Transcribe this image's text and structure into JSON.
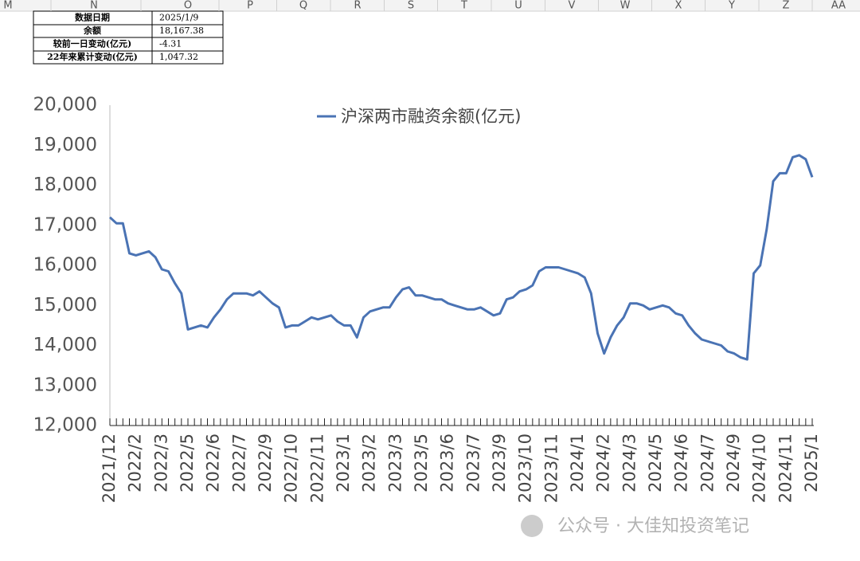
{
  "columns": [
    "M",
    "N",
    "O",
    "P",
    "Q",
    "R",
    "S",
    "T",
    "U",
    "V",
    "W",
    "X",
    "Y",
    "Z",
    "AA"
  ],
  "table": {
    "rows": [
      [
        "数据日期",
        "2025/1/9"
      ],
      [
        "余额",
        "18,167.38"
      ],
      [
        "较前一日变动(亿元)",
        "-4.31"
      ],
      [
        "22年来累计变动(亿元)",
        "1,047.32"
      ]
    ]
  },
  "watermark": "公众号 · 大佳知投资笔记",
  "chart_data": {
    "type": "line",
    "categories": [
      "2021/12",
      null,
      null,
      null,
      "2022/2",
      null,
      null,
      null,
      "2022/3",
      null,
      null,
      null,
      "2022/5",
      null,
      null,
      null,
      "2022/6",
      null,
      null,
      null,
      "2022/7",
      null,
      null,
      null,
      "2022/9",
      null,
      null,
      null,
      "2022/10",
      null,
      null,
      null,
      "2022/11",
      null,
      null,
      null,
      "2023/1",
      null,
      null,
      null,
      "2023/2",
      null,
      null,
      null,
      "2023/3",
      null,
      null,
      null,
      "2023/5",
      null,
      null,
      null,
      "2023/6",
      null,
      null,
      null,
      "2023/7",
      null,
      null,
      null,
      "2023/9",
      null,
      null,
      null,
      "2023/10",
      null,
      null,
      null,
      "2023/11",
      null,
      null,
      null,
      "2024/1",
      null,
      null,
      null,
      "2024/2",
      null,
      null,
      null,
      "2024/3",
      null,
      null,
      null,
      "2024/5",
      null,
      null,
      null,
      "2024/6",
      null,
      null,
      null,
      "2024/7",
      null,
      null,
      null,
      "2024/9",
      null,
      null,
      null,
      "2024/10",
      null,
      null,
      null,
      "2024/11",
      null,
      null,
      null,
      "2025/1"
    ],
    "series": [
      {
        "name": "沪深两市融资余额(亿元)",
        "color": "#4a73b4",
        "values": [
          17200,
          17050,
          17050,
          16300,
          16250,
          16300,
          16350,
          16200,
          15900,
          15850,
          15550,
          15300,
          14400,
          14450,
          14500,
          14450,
          14700,
          14900,
          15150,
          15300,
          15300,
          15300,
          15250,
          15350,
          15200,
          15050,
          14950,
          14450,
          14500,
          14500,
          14600,
          14700,
          14650,
          14700,
          14750,
          14600,
          14500,
          14500,
          14200,
          14700,
          14850,
          14900,
          14950,
          14950,
          15200,
          15400,
          15450,
          15250,
          15250,
          15200,
          15150,
          15150,
          15050,
          15000,
          14950,
          14900,
          14900,
          14950,
          14850,
          14750,
          14800,
          15150,
          15200,
          15350,
          15400,
          15500,
          15850,
          15950,
          15950,
          15950,
          15900,
          15850,
          15800,
          15700,
          15300,
          14300,
          13800,
          14200,
          14500,
          14700,
          15050,
          15050,
          15000,
          14900,
          14950,
          15000,
          14950,
          14800,
          14750,
          14500,
          14300,
          14150,
          14100,
          14050,
          14000,
          13850,
          13800,
          13700,
          13650,
          15800,
          16000,
          16900,
          18100,
          18300,
          18300,
          18700,
          18750,
          18650,
          18200
        ]
      }
    ],
    "ylim": [
      12000,
      20000
    ],
    "yticks": [
      {
        "value": 12000,
        "label": "12,000"
      },
      {
        "value": 13000,
        "label": "13,000"
      },
      {
        "value": 14000,
        "label": "14,000"
      },
      {
        "value": 15000,
        "label": "15,000"
      },
      {
        "value": 16000,
        "label": "16,000"
      },
      {
        "value": 17000,
        "label": "17,000"
      },
      {
        "value": 18000,
        "label": "18,000"
      },
      {
        "value": 19000,
        "label": "19,000"
      },
      {
        "value": 20000,
        "label": "20,000"
      }
    ],
    "legend": "top"
  }
}
